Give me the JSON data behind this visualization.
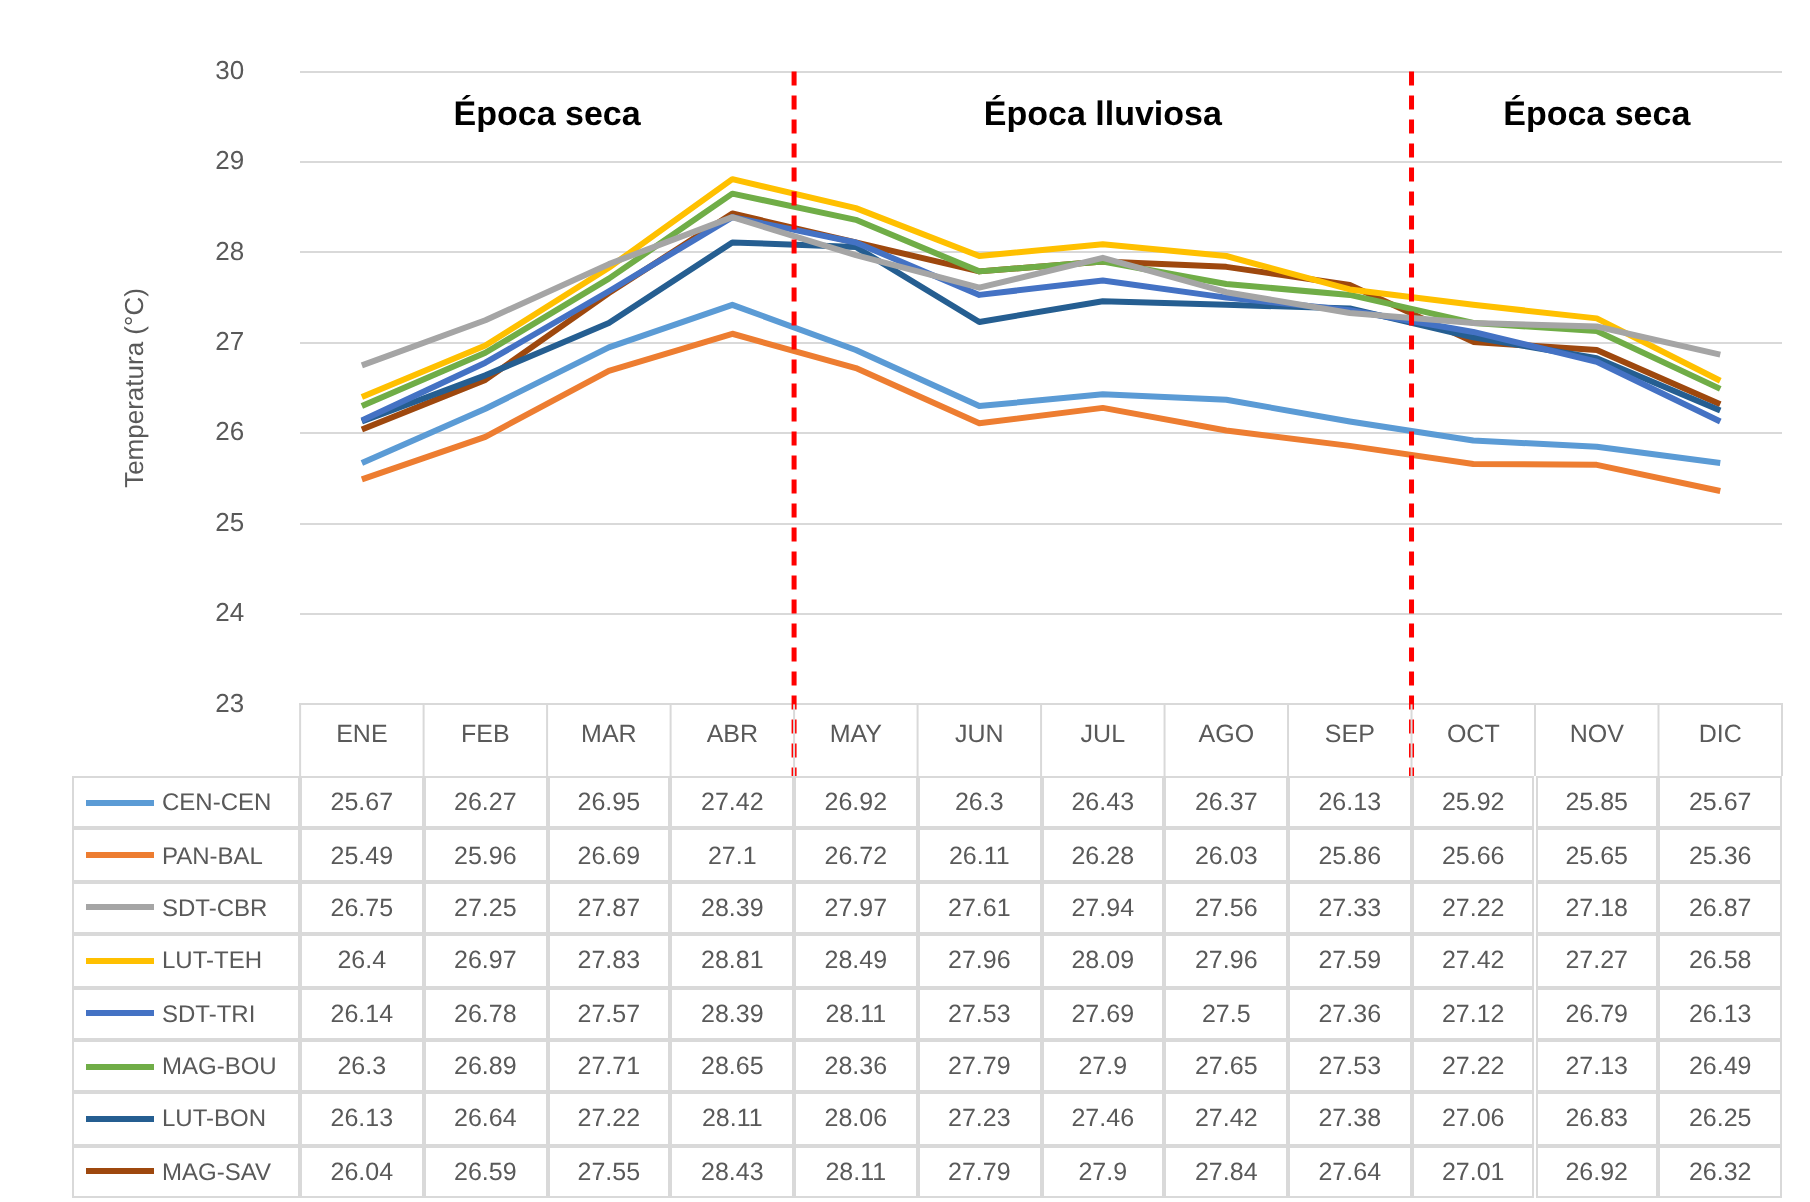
{
  "chart_data": {
    "type": "line",
    "ylabel": "Temperatura (°C)",
    "categories": [
      "ENE",
      "FEB",
      "MAR",
      "ABR",
      "MAY",
      "JUN",
      "JUL",
      "AGO",
      "SEP",
      "OCT",
      "NOV",
      "DIC"
    ],
    "ylim": [
      23,
      30
    ],
    "yticks": [
      23,
      24,
      25,
      26,
      27,
      28,
      29,
      30
    ],
    "grid": "y",
    "legend": "bottom",
    "data_labels": true,
    "marker": "none",
    "line_style": "solid",
    "annotations": [
      "Época seca",
      "Época lluviosa",
      "Época seca"
    ],
    "series": [
      {
        "name": "CEN-CEN",
        "color": "#5b9bd5",
        "values": [
          25.67,
          26.27,
          26.95,
          27.42,
          26.92,
          26.3,
          26.43,
          26.37,
          26.13,
          25.92,
          25.85,
          25.67
        ]
      },
      {
        "name": "PAN-BAL",
        "color": "#ed7d31",
        "values": [
          25.49,
          25.96,
          26.69,
          27.1,
          26.72,
          26.11,
          26.28,
          26.03,
          25.86,
          25.66,
          25.65,
          25.36
        ]
      },
      {
        "name": "SDT-CBR",
        "color": "#a5a5a5",
        "values": [
          26.75,
          27.25,
          27.87,
          28.39,
          27.97,
          27.61,
          27.94,
          27.56,
          27.33,
          27.22,
          27.18,
          26.87
        ]
      },
      {
        "name": "LUT-TEH",
        "color": "#ffc000",
        "values": [
          26.4,
          26.97,
          27.83,
          28.81,
          28.49,
          27.96,
          28.09,
          27.96,
          27.59,
          27.42,
          27.27,
          26.58
        ]
      },
      {
        "name": "SDT-TRI",
        "color": "#4472c4",
        "values": [
          26.14,
          26.78,
          27.57,
          28.39,
          28.11,
          27.53,
          27.69,
          27.5,
          27.36,
          27.12,
          26.79,
          26.13
        ]
      },
      {
        "name": "MAG-BOU",
        "color": "#70ad47",
        "values": [
          26.3,
          26.89,
          27.71,
          28.65,
          28.36,
          27.79,
          27.9,
          27.65,
          27.53,
          27.22,
          27.13,
          26.49
        ]
      },
      {
        "name": "LUT-BON",
        "color": "#255e91",
        "values": [
          26.13,
          26.64,
          27.22,
          28.11,
          28.06,
          27.23,
          27.46,
          27.42,
          27.38,
          27.06,
          26.83,
          26.25
        ]
      },
      {
        "name": "MAG-SAV",
        "color": "#9e480e",
        "values": [
          26.04,
          26.59,
          27.55,
          28.43,
          28.11,
          27.79,
          27.9,
          27.84,
          27.64,
          27.01,
          26.92,
          26.32
        ]
      }
    ]
  }
}
